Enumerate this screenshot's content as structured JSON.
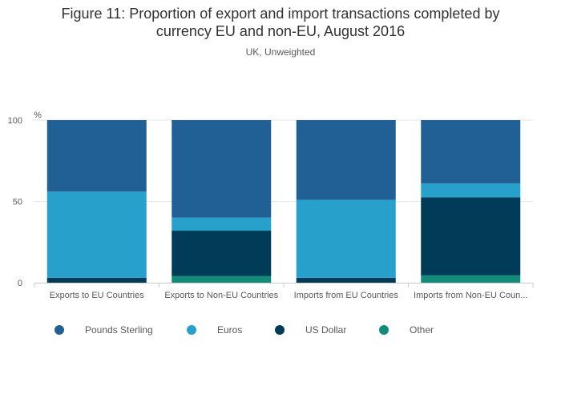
{
  "chart_data": {
    "type": "bar",
    "stacked": true,
    "title_lines": [
      "Figure 11: Proportion of export and import transactions completed by",
      "currency EU and non-EU, August 2016"
    ],
    "subtitle": "UK, Unweighted",
    "ylabel": "%",
    "ylim": [
      0,
      100
    ],
    "yticks": [
      0,
      50,
      100
    ],
    "categories": [
      "Exports to EU Countries",
      "Exports to Non-EU Countries",
      "Imports from EU Countries",
      "Imports from Non-EU Coun..."
    ],
    "series": [
      {
        "name": "Other",
        "color": "#118c7b",
        "values": [
          0,
          4,
          0,
          4.5
        ]
      },
      {
        "name": "US Dollar",
        "color": "#003c57",
        "values": [
          3,
          28,
          3,
          48
        ]
      },
      {
        "name": "Euros",
        "color": "#27a0cc",
        "values": [
          53,
          8,
          48,
          8.5
        ]
      },
      {
        "name": "Pounds Sterling",
        "color": "#206095",
        "values": [
          44,
          60,
          49,
          39
        ]
      }
    ],
    "legend": [
      {
        "label": "Pounds Sterling",
        "color": "#206095"
      },
      {
        "label": "Euros",
        "color": "#27a0cc"
      },
      {
        "label": "US Dollar",
        "color": "#003c57"
      },
      {
        "label": "Other",
        "color": "#118c7b"
      }
    ],
    "legend_position": "bottom-left",
    "grid": true
  }
}
